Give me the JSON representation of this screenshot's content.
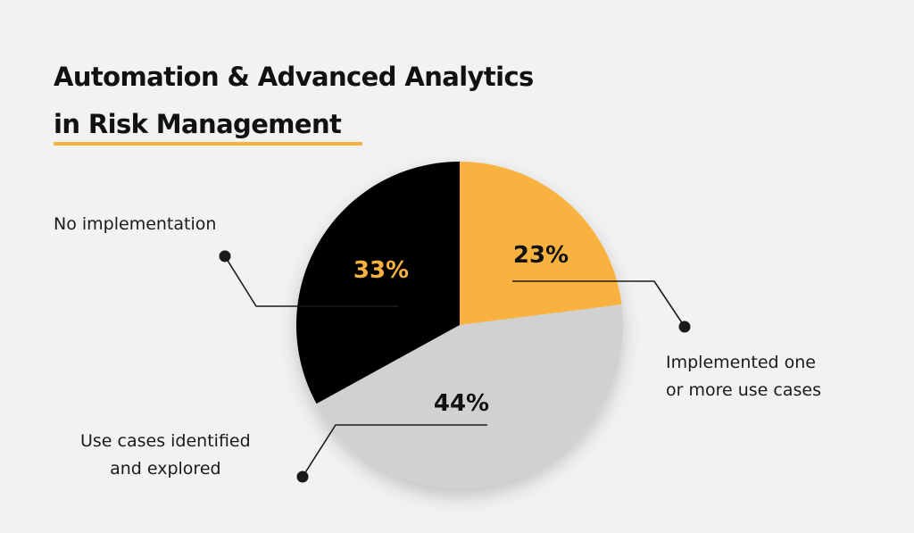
{
  "title": {
    "line1": "Automation & Advanced Analytics",
    "line2": "in Risk Management"
  },
  "colors": {
    "background": "#f2f2f2",
    "accent": "#f9b13f",
    "implemented": "#f9b13f",
    "identified": "#d1d1d1",
    "none": "#000000",
    "text": "#111111"
  },
  "chart_data": {
    "type": "pie",
    "title": "Automation & Advanced Analytics in Risk Management",
    "slices": [
      {
        "label": "Implemented one or more use cases",
        "label_lines": [
          "Implemented one",
          "or more use cases"
        ],
        "value": 23,
        "display": "23%",
        "color": "#f9b13f",
        "value_color": "#111111"
      },
      {
        "label": "Use cases identified and explored",
        "label_lines": [
          "Use cases identified",
          "and explored"
        ],
        "value": 44,
        "display": "44%",
        "color": "#d1d1d1",
        "value_color": "#111111"
      },
      {
        "label": "No implementation",
        "label_lines": [
          "No implementation"
        ],
        "value": 33,
        "display": "33%",
        "color": "#000000",
        "value_color": "#f9b13f"
      }
    ],
    "start_angle": "12 o'clock",
    "direction": "clockwise",
    "legend": "callout-labels"
  }
}
